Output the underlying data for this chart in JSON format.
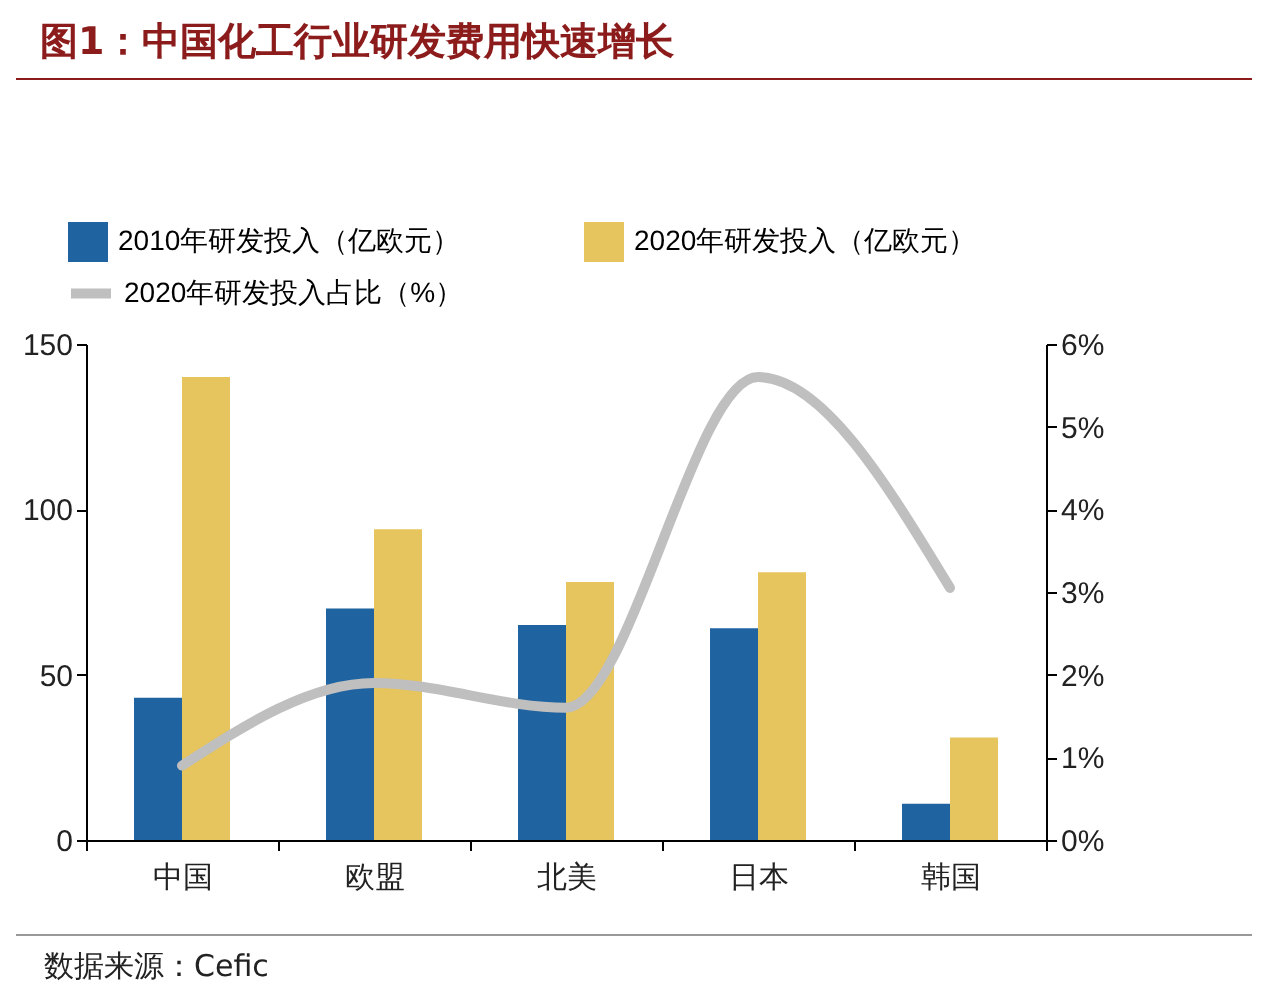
{
  "chart_data": {
    "type": "bar",
    "title": "图1：中国化工行业研发费用快速增长",
    "categories": [
      "中国",
      "欧盟",
      "北美",
      "日本",
      "韩国"
    ],
    "series": [
      {
        "name": "2010年研发投入（亿欧元）",
        "color": "#1f63a0",
        "values": [
          43,
          70,
          65,
          64,
          11
        ]
      },
      {
        "name": "2020年研发投入（亿欧元）",
        "color": "#e6c45e",
        "values": [
          140,
          94,
          78,
          81,
          31
        ]
      },
      {
        "name": "2020年研发投入占比（%）",
        "type": "line",
        "axis": "y2",
        "color": "#bfbfbf",
        "values": [
          0.9,
          1.9,
          1.6,
          5.6,
          3.05
        ]
      }
    ],
    "ylim": [
      0,
      150
    ],
    "yticks": [
      0,
      50,
      100,
      150
    ],
    "y2lim": [
      0,
      6
    ],
    "y2ticks": [
      {
        "value": 0,
        "label": "0%"
      },
      {
        "value": 1,
        "label": "1%"
      },
      {
        "value": 2,
        "label": "2%"
      },
      {
        "value": 3,
        "label": "3%"
      },
      {
        "value": 4,
        "label": "4%"
      },
      {
        "value": 5,
        "label": "5%"
      },
      {
        "value": 6,
        "label": "6%"
      }
    ],
    "legend": "top",
    "grid": false,
    "annotations": [
      "数据来源：Cefic"
    ]
  }
}
